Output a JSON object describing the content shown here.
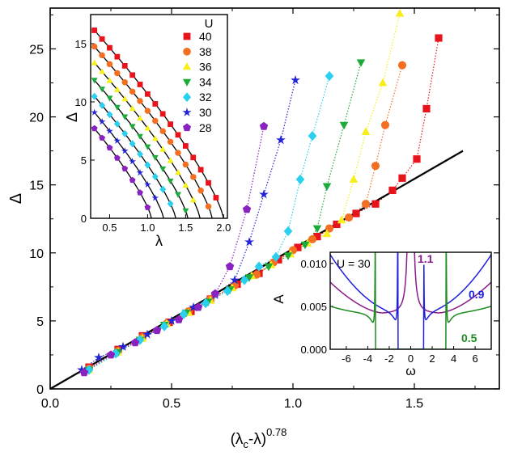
{
  "chart_data": [
    {
      "id": "main",
      "type": "scatter",
      "xlabel": "(λ",
      "xlabel_sub": "c",
      "xlabel_tail": "-λ)",
      "xlabel_sup": "0.78",
      "ylabel": "Δ",
      "xlim": [
        0,
        1.85
      ],
      "ylim": [
        0,
        28
      ],
      "xticks": [
        0.0,
        0.5,
        1.0,
        1.5
      ],
      "xtick_labels": [
        "0.0",
        "0.5",
        "1.0",
        "1.5"
      ],
      "yticks": [
        0,
        5,
        10,
        15,
        20,
        25
      ],
      "ytick_labels": [
        "0",
        "5",
        "10",
        "15",
        "20",
        "25"
      ],
      "fit_line": {
        "color": "#000000",
        "x": [
          0,
          1.7
        ],
        "y": [
          0,
          17.5
        ]
      },
      "series": [
        {
          "name": "40",
          "color": "#e8141b",
          "marker": "square",
          "x": [
            0.16,
            0.28,
            0.38,
            0.49,
            0.58,
            0.66,
            0.77,
            0.86,
            0.94,
            1.02,
            1.1,
            1.18,
            1.26,
            1.34,
            1.41,
            1.45,
            1.51,
            1.55,
            1.6
          ],
          "y": [
            1.6,
            2.9,
            3.9,
            4.9,
            5.7,
            6.6,
            7.7,
            8.5,
            9.5,
            10.4,
            11.2,
            12.1,
            12.9,
            13.6,
            14.6,
            15.5,
            16.9,
            20.6,
            25.8
          ]
        },
        {
          "name": "38",
          "color": "#f36f21",
          "marker": "circle",
          "x": [
            0.16,
            0.28,
            0.38,
            0.48,
            0.57,
            0.66,
            0.76,
            0.85,
            0.92,
            1.0,
            1.08,
            1.15,
            1.23,
            1.3,
            1.34,
            1.38,
            1.45
          ],
          "y": [
            1.5,
            2.8,
            3.8,
            4.8,
            5.7,
            6.6,
            7.6,
            8.4,
            9.3,
            10.2,
            11.0,
            11.8,
            12.6,
            13.6,
            16.4,
            19.4,
            23.8
          ]
        },
        {
          "name": "36",
          "color": "#f6ef1a",
          "marker": "triangle-up",
          "x": [
            0.16,
            0.28,
            0.38,
            0.48,
            0.57,
            0.66,
            0.75,
            0.83,
            0.91,
            0.99,
            1.06,
            1.14,
            1.2,
            1.25,
            1.3,
            1.37,
            1.44
          ],
          "y": [
            1.4,
            2.7,
            3.7,
            4.8,
            5.6,
            6.5,
            7.4,
            8.3,
            9.1,
            9.9,
            10.7,
            11.4,
            12.4,
            15.4,
            18.9,
            22.5,
            27.6
          ]
        },
        {
          "name": "34",
          "color": "#1eaa3a",
          "marker": "triangle-down",
          "x": [
            0.16,
            0.28,
            0.37,
            0.47,
            0.56,
            0.65,
            0.74,
            0.82,
            0.9,
            0.98,
            1.05,
            1.1,
            1.14,
            1.21,
            1.28
          ],
          "y": [
            1.4,
            2.7,
            3.6,
            4.7,
            5.6,
            6.4,
            7.3,
            8.2,
            9.0,
            9.8,
            10.6,
            11.8,
            14.9,
            19.4,
            24.0
          ]
        },
        {
          "name": "32",
          "color": "#2ad0f0",
          "marker": "diamond",
          "x": [
            0.16,
            0.27,
            0.37,
            0.47,
            0.55,
            0.64,
            0.73,
            0.8,
            0.86,
            0.93,
            0.98,
            1.03,
            1.08,
            1.15
          ],
          "y": [
            1.4,
            2.6,
            3.6,
            4.6,
            5.5,
            6.3,
            7.2,
            8.0,
            9.0,
            9.7,
            11.6,
            15.4,
            18.6,
            23.0
          ]
        },
        {
          "name": "30",
          "color": "#2323d6",
          "marker": "star",
          "x": [
            0.13,
            0.2,
            0.3,
            0.4,
            0.5,
            0.59,
            0.68,
            0.76,
            0.82,
            0.88,
            0.95,
            1.01
          ],
          "y": [
            1.4,
            2.3,
            3.1,
            4.0,
            5.0,
            6.0,
            6.9,
            8.0,
            10.8,
            14.3,
            18.3,
            22.7
          ]
        },
        {
          "name": "28",
          "color": "#8a22c0",
          "marker": "pentagon",
          "x": [
            0.14,
            0.25,
            0.35,
            0.44,
            0.53,
            0.61,
            0.68,
            0.74,
            0.81,
            0.88
          ],
          "y": [
            1.2,
            2.5,
            3.4,
            4.3,
            5.1,
            6.0,
            7.0,
            9.0,
            13.2,
            19.3
          ]
        }
      ]
    },
    {
      "id": "inset-left",
      "type": "scatter",
      "xlabel": "λ",
      "ylabel": "Δ",
      "xlim": [
        0.25,
        2.05
      ],
      "ylim": [
        0,
        17.5
      ],
      "xticks": [
        0.5,
        1.0,
        1.5,
        2.0
      ],
      "xtick_labels": [
        "0.5",
        "1.0",
        "1.5",
        "2.0"
      ],
      "yticks": [
        0,
        5,
        10,
        15
      ],
      "ytick_labels": [
        "0",
        "5",
        "10",
        "15"
      ],
      "legend_title": "U",
      "legend_position": "top-right",
      "series": [
        {
          "name": "40",
          "color": "#e8141b",
          "marker": "square",
          "lc": 2.0,
          "d0": 15.4,
          "x0": 0.4,
          "xmax": 1.95
        },
        {
          "name": "38",
          "color": "#f36f21",
          "marker": "circle",
          "lc": 1.85,
          "d0": 14.0,
          "x0": 0.4,
          "xmax": 1.8
        },
        {
          "name": "36",
          "color": "#f6ef1a",
          "marker": "triangle-up",
          "lc": 1.69,
          "d0": 12.6,
          "x0": 0.4,
          "xmax": 1.65
        },
        {
          "name": "34",
          "color": "#1eaa3a",
          "marker": "triangle-down",
          "lc": 1.53,
          "d0": 11.1,
          "x0": 0.4,
          "xmax": 1.5
        },
        {
          "name": "32",
          "color": "#2ad0f0",
          "marker": "diamond",
          "lc": 1.37,
          "d0": 9.7,
          "x0": 0.4,
          "xmax": 1.34
        },
        {
          "name": "30",
          "color": "#2323d6",
          "marker": "star",
          "lc": 1.21,
          "d0": 8.3,
          "x0": 0.4,
          "xmax": 1.18
        },
        {
          "name": "28",
          "color": "#8a22c0",
          "marker": "pentagon",
          "lc": 1.05,
          "d0": 6.9,
          "x0": 0.4,
          "xmax": 1.02
        }
      ]
    },
    {
      "id": "inset-right",
      "type": "line",
      "xlabel": "ω",
      "ylabel": "A",
      "xlim": [
        -7.5,
        7.5
      ],
      "ylim": [
        0,
        0.0113
      ],
      "xticks": [
        -6,
        -4,
        -2,
        0,
        2,
        4,
        6
      ],
      "xtick_labels": [
        "-6",
        "-4",
        "-2",
        "0",
        "2",
        "4",
        "6"
      ],
      "yticks": [
        0,
        0.005,
        0.01
      ],
      "ytick_labels": [
        "0.000",
        "0.005",
        "0.010"
      ],
      "title": "U = 30",
      "series": [
        {
          "name": "1.1",
          "color": "#8b1a8b",
          "gap": 0.0,
          "floor": 0.0041,
          "wing": 0.0078
        },
        {
          "name": "0.9",
          "color": "#2020e0",
          "gap": 1.2,
          "floor": 0.0045,
          "wing": 0.012
        },
        {
          "name": "0.5",
          "color": "#1e8c1e",
          "gap": 3.3,
          "floor": 0.0042,
          "wing": 0.0052
        }
      ]
    }
  ]
}
